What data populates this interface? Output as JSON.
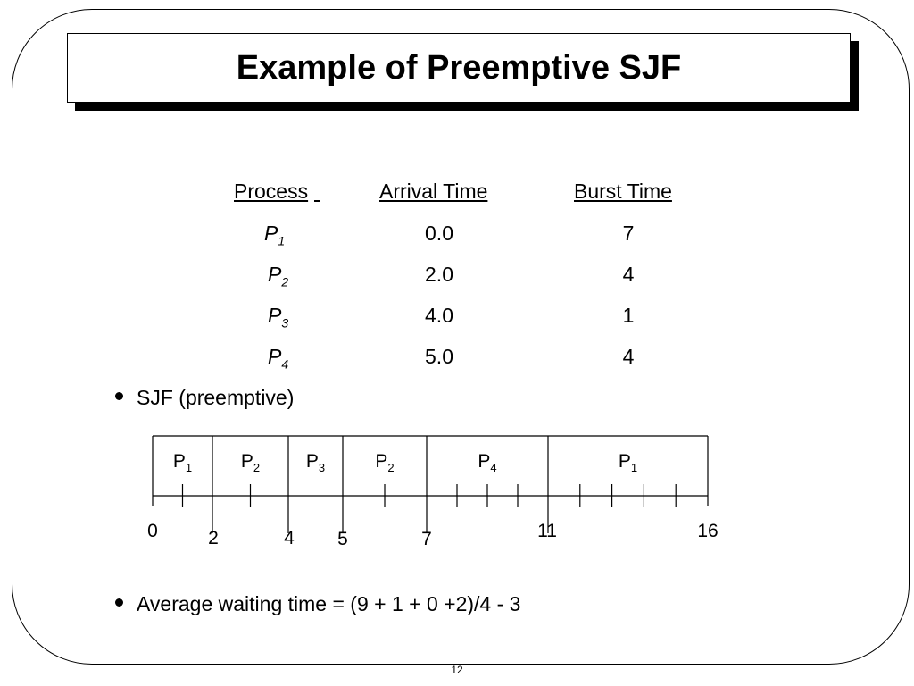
{
  "slide": {
    "title": "Example of Preemptive SJF",
    "page_number": "12"
  },
  "table": {
    "headers": [
      "Process",
      "Arrival Time",
      "Burst Time"
    ],
    "rows": [
      {
        "process": "P",
        "sub": "1",
        "arrival": "0.0",
        "burst": "7"
      },
      {
        "process": "P",
        "sub": "2",
        "arrival": "2.0",
        "burst": "4"
      },
      {
        "process": "P",
        "sub": "3",
        "arrival": "4.0",
        "burst": "1"
      },
      {
        "process": "P",
        "sub": "4",
        "arrival": "5.0",
        "burst": "4"
      }
    ]
  },
  "bullets": {
    "first": "SJF (preemptive)",
    "second": "Average waiting time = (9 + 1 + 0 +2)/4 - 3"
  },
  "gantt": {
    "segments": [
      {
        "process": "P",
        "sub": "1",
        "start": 0,
        "end": 2
      },
      {
        "process": "P",
        "sub": "2",
        "start": 2,
        "end": 4
      },
      {
        "process": "P",
        "sub": "3",
        "start": 4,
        "end": 5
      },
      {
        "process": "P",
        "sub": "2",
        "start": 5,
        "end": 7
      },
      {
        "process": "P",
        "sub": "4",
        "start": 7,
        "end": 11
      },
      {
        "process": "P",
        "sub": "1",
        "start": 11,
        "end": 16
      }
    ],
    "boundary_labels": [
      "0",
      "2",
      "4",
      "5",
      "7",
      "11",
      "16"
    ]
  }
}
